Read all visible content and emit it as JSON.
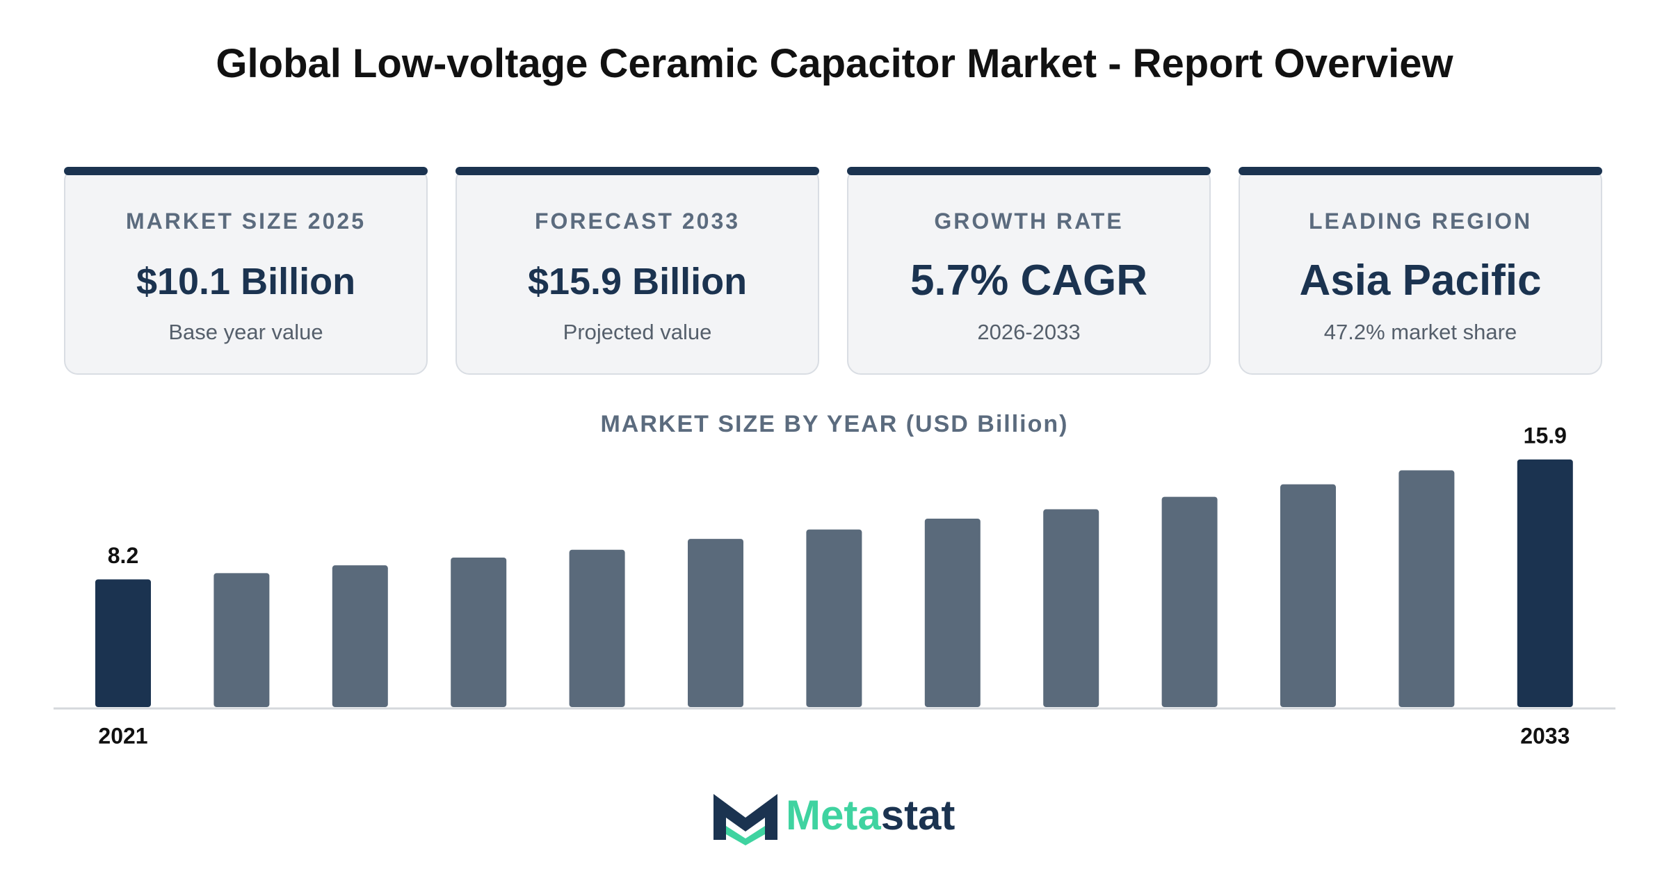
{
  "header": {
    "title": "Global Low-voltage Ceramic Capacitor Market - Report Overview"
  },
  "cards": [
    {
      "label": "MARKET SIZE 2025",
      "value": "$10.1 Billion",
      "note": "Base year value"
    },
    {
      "label": "FORECAST 2033",
      "value": "$15.9 Billion",
      "note": "Projected value"
    },
    {
      "label": "GROWTH RATE",
      "value": "5.7% CAGR",
      "note": "2026-2033"
    },
    {
      "label": "LEADING REGION",
      "value": "Asia Pacific",
      "note": "47.2% market share"
    }
  ],
  "chart_data": {
    "type": "bar",
    "title": "MARKET SIZE BY YEAR (USD Billion)",
    "categories": [
      "2021",
      null,
      null,
      null,
      null,
      null,
      null,
      null,
      null,
      null,
      null,
      null,
      "2033"
    ],
    "values": [
      8.2,
      8.6,
      9.1,
      9.6,
      10.1,
      10.8,
      11.4,
      12.1,
      12.7,
      13.5,
      14.3,
      15.2,
      15.9
    ],
    "colors": [
      "#1b3350",
      "#5a6a7b",
      "#5a6a7b",
      "#5a6a7b",
      "#5a6a7b",
      "#5a6a7b",
      "#5a6a7b",
      "#5a6a7b",
      "#5a6a7b",
      "#5a6a7b",
      "#5a6a7b",
      "#5a6a7b",
      "#1b3350"
    ]
  },
  "logo": {
    "parts": [
      "Meta",
      "stat"
    ]
  }
}
